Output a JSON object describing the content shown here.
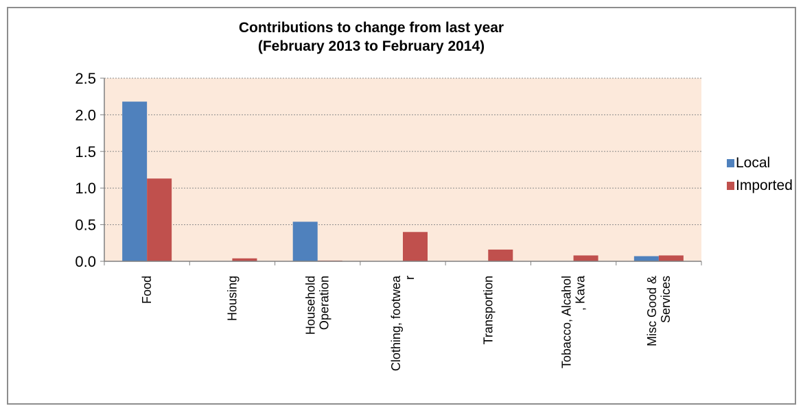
{
  "chart_data": {
    "type": "bar",
    "title": [
      "Contributions to change from last year",
      "(February 2013 to February 2014)"
    ],
    "xlabel": "",
    "ylabel": "",
    "ylim": [
      0,
      2.5
    ],
    "yticks": [
      "0.0",
      "0.5",
      "1.0",
      "1.5",
      "2.0",
      "2.5"
    ],
    "grid": true,
    "legend_position": "right",
    "categories": [
      [
        "Food"
      ],
      [
        "Housing"
      ],
      [
        "Household",
        "Operation"
      ],
      [
        "Clothing, footwea",
        "r"
      ],
      [
        "Transportion"
      ],
      [
        "Tobacco, Alcahol",
        ", Kava"
      ],
      [
        "Misc Good &",
        "Services"
      ]
    ],
    "series": [
      {
        "name": "Local",
        "color": "#4f81bd",
        "values": [
          2.18,
          0.0,
          0.54,
          0.0,
          0.0,
          0.0,
          0.07
        ]
      },
      {
        "name": "Imported",
        "color": "#c0504d",
        "values": [
          1.13,
          0.04,
          0.01,
          0.4,
          0.16,
          0.08,
          0.08
        ]
      }
    ],
    "plot_background": "#fce9db"
  }
}
